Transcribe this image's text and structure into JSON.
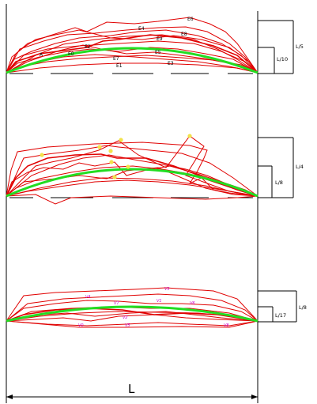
{
  "colors": {
    "curves": "#e00000",
    "reference_arc": "#22dd22",
    "markers": "#f2e24a",
    "frame": "#000000",
    "panel3_labels": "#cc00cc"
  },
  "panel1": {
    "labels": [
      "E6",
      "E4",
      "E8",
      "E9",
      "E2",
      "E5",
      "E7",
      "E3",
      "E1",
      "E0",
      "A"
    ],
    "dim_outer": "L/5",
    "dim_inner": "L/10"
  },
  "panel2": {
    "dim_outer": "L/4",
    "dim_inner": "L/8"
  },
  "panel3": {
    "labels": [
      "V3",
      "V4",
      "V7",
      "V1",
      "V6",
      "V2",
      "V5",
      "V8",
      "V0"
    ],
    "dim_outer": "L/8",
    "dim_inner": "L/17"
  },
  "span_label": "L"
}
